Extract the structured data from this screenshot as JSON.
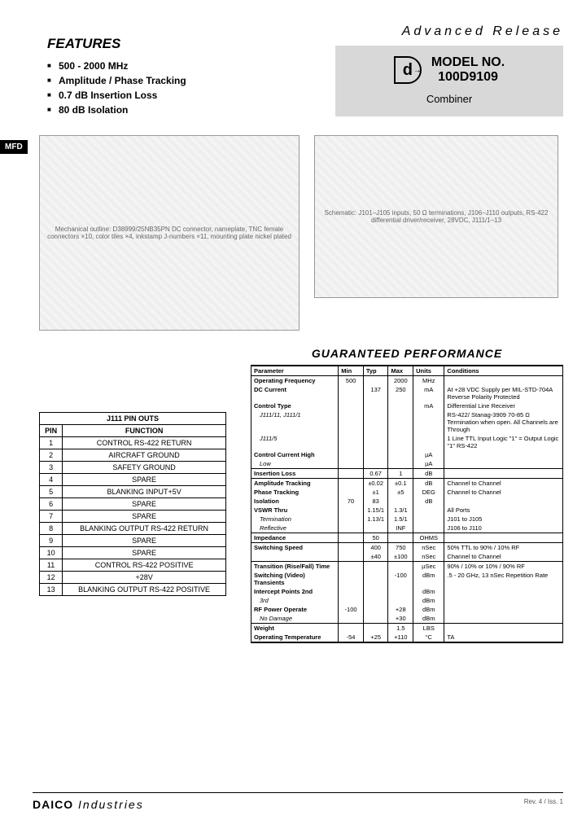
{
  "badge": "MFD",
  "features": {
    "heading": "FEATURES",
    "items": [
      "500 - 2000 MHz",
      "Amplitude / Phase Tracking",
      "0.7 dB Insertion Loss",
      "80 dB Isolation"
    ]
  },
  "header": {
    "advanced": "Advanced Release",
    "model_label": "MODEL NO.",
    "model_number": "100D9109",
    "subtitle": "Combiner",
    "logo_letter": "d"
  },
  "diagrams": {
    "mechanical_caption": "Mechanical outline: D38999/25NB35PN DC connector, nameplate, TNC female connectors ×10, color tiles ×4, inkstamp J-numbers ×11, mounting plate nickel plated",
    "schematic_caption": "Schematic: J101–J105 inputs, 50 Ω terminations, J106–J110 outputs, RS-422 differential driver/receiver, 28VDC, J111/1–13"
  },
  "pinouts": {
    "title": "J111 PIN OUTS",
    "columns": [
      "PIN",
      "FUNCTION"
    ],
    "rows": [
      [
        "1",
        "CONTROL RS-422 RETURN"
      ],
      [
        "2",
        "AIRCRAFT GROUND"
      ],
      [
        "3",
        "SAFETY GROUND"
      ],
      [
        "4",
        "SPARE"
      ],
      [
        "5",
        "BLANKING INPUT+5V"
      ],
      [
        "6",
        "SPARE"
      ],
      [
        "7",
        "SPARE"
      ],
      [
        "8",
        "BLANKING OUTPUT RS-422 RETURN"
      ],
      [
        "9",
        "SPARE"
      ],
      [
        "10",
        "SPARE"
      ],
      [
        "11",
        "CONTROL RS-422 POSITIVE"
      ],
      [
        "12",
        "+28V"
      ],
      [
        "13",
        "BLANKING OUTPUT RS-422 POSITIVE"
      ]
    ]
  },
  "performance": {
    "heading": "GUARANTEED PERFORMANCE",
    "columns": [
      "Parameter",
      "Min",
      "Typ",
      "Max",
      "Units",
      "Conditions"
    ],
    "rows": [
      {
        "p": "Operating Frequency",
        "min": "500",
        "typ": "",
        "max": "2000",
        "u": "MHz",
        "c": "",
        "sep": false
      },
      {
        "p": "DC Current",
        "min": "",
        "typ": "137",
        "max": "250",
        "u": "mA",
        "c": "At +28 VDC Supply per MIL-STD-704A Reverse Polarity Protected",
        "sep": false
      },
      {
        "p": "Control Type",
        "min": "",
        "typ": "",
        "max": "",
        "u": "mA",
        "c": "Differential Line Receiver",
        "sep": false
      },
      {
        "p": "J111/11, J111/1",
        "sub": true,
        "min": "",
        "typ": "",
        "max": "",
        "u": "",
        "c": "RS-422/ Stanag-3909 70-85 Ω Termination when open. All Channels are Through",
        "sep": false
      },
      {
        "p": "J111/5",
        "sub": true,
        "min": "",
        "typ": "",
        "max": "",
        "u": "",
        "c": "1 Line TTL Input Logic \"1\" = Output Logic \"1\" RS-422",
        "sep": false
      },
      {
        "p": "Control Current   High",
        "min": "",
        "typ": "",
        "max": "",
        "u": "µA",
        "c": "",
        "sep": false
      },
      {
        "p": "Low",
        "sub": true,
        "min": "",
        "typ": "",
        "max": "",
        "u": "µA",
        "c": "",
        "sep": true
      },
      {
        "p": "Insertion Loss",
        "min": "",
        "typ": "0.67",
        "max": "1",
        "u": "dB",
        "c": "",
        "sep": true
      },
      {
        "p": "Amplitude Tracking",
        "min": "",
        "typ": "±0.02",
        "max": "±0.1",
        "u": "dB",
        "c": "Channel to Channel",
        "sep": false
      },
      {
        "p": "Phase Tracking",
        "min": "",
        "typ": "±1",
        "max": "±5",
        "u": "DEG",
        "c": "Channel to Channel",
        "sep": false
      },
      {
        "p": "Isolation",
        "min": "70",
        "typ": "83",
        "max": "",
        "u": "dB",
        "c": "",
        "sep": false
      },
      {
        "p": "VSWR   Thru",
        "min": "",
        "typ": "1.15/1",
        "max": "1.3/1",
        "u": "",
        "c": "All Ports",
        "sep": false
      },
      {
        "p": "Termination",
        "sub": true,
        "min": "",
        "typ": "1.13/1",
        "max": "1.5/1",
        "u": "",
        "c": "J101 to J105",
        "sep": false
      },
      {
        "p": "Reflective",
        "sub": true,
        "min": "",
        "typ": "",
        "max": "INF",
        "u": "",
        "c": "J106 to J110",
        "sep": true
      },
      {
        "p": "Impedance",
        "min": "",
        "typ": "50",
        "max": "",
        "u": "OHMS",
        "c": "",
        "sep": true
      },
      {
        "p": "Switching Speed",
        "min": "",
        "typ": "400",
        "max": "750",
        "u": "nSec",
        "c": "50% TTL to 90% / 10% RF",
        "sep": false
      },
      {
        "p": "",
        "min": "",
        "typ": "±40",
        "max": "±100",
        "u": "nSec",
        "c": "Channel to Channel",
        "sep": true
      },
      {
        "p": "Transition (Rise/Fall) Time",
        "min": "",
        "typ": "",
        "max": "",
        "u": "µSec",
        "c": "90% / 10% or 10% / 90% RF",
        "sep": false
      },
      {
        "p": "Switching (Video) Transients",
        "min": "",
        "typ": "",
        "max": "-100",
        "u": "dBm",
        "c": ".5 - 20 GHz, 13 nSec Repetition Rate",
        "sep": false
      },
      {
        "p": "Intercept Points   2nd",
        "min": "",
        "typ": "",
        "max": "",
        "u": "dBm",
        "c": "",
        "sep": false
      },
      {
        "p": "3rd",
        "sub": true,
        "min": "",
        "typ": "",
        "max": "",
        "u": "dBm",
        "c": "",
        "sep": false
      },
      {
        "p": "RF Power   Operate",
        "min": "-100",
        "typ": "",
        "max": "+28",
        "u": "dBm",
        "c": "",
        "sep": false
      },
      {
        "p": "No Damage",
        "sub": true,
        "min": "",
        "typ": "",
        "max": "+30",
        "u": "dBm",
        "c": "",
        "sep": true
      },
      {
        "p": "Weight",
        "min": "",
        "typ": "",
        "max": "1.5",
        "u": "LBS",
        "c": "",
        "sep": false
      },
      {
        "p": "Operating Temperature",
        "min": "-54",
        "typ": "+25",
        "max": "+110",
        "u": "°C",
        "c": "TA",
        "sep": true
      }
    ]
  },
  "footer": {
    "brand_bold": "DAICO",
    "brand_light": " Industries",
    "rev": "Rev. 4 / Iss. 1"
  },
  "colors": {
    "model_box_bg": "#d8d8d8",
    "text": "#000000",
    "bg": "#ffffff"
  }
}
